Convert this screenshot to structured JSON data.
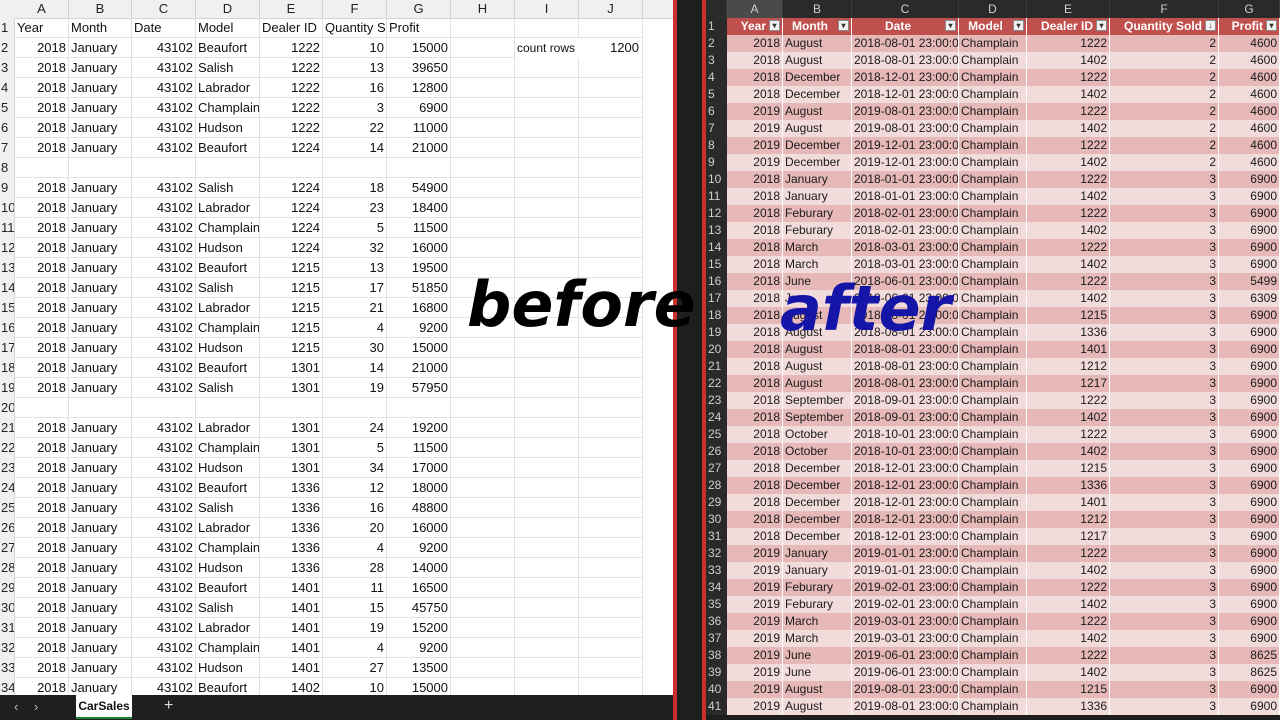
{
  "before": {
    "columns": [
      "A",
      "B",
      "C",
      "D",
      "E",
      "F",
      "G",
      "H",
      "I",
      "J"
    ],
    "headers": [
      "Year",
      "Month",
      "Date",
      "Model",
      "Dealer ID",
      "Quantity S",
      "Profit"
    ],
    "side_label": "count rows",
    "side_value": "1200",
    "rows": [
      [
        "1",
        "2018",
        "January",
        "43102",
        "Beaufort",
        "1222",
        "10",
        "15000"
      ],
      [
        "2",
        "2018",
        "January",
        "43102",
        "Salish",
        "1222",
        "13",
        "39650"
      ],
      [
        "3",
        "2018",
        "January",
        "43102",
        "Labrador",
        "1222",
        "16",
        "12800"
      ],
      [
        "4",
        "2018",
        "January",
        "43102",
        "Champlain",
        "1222",
        "3",
        "6900"
      ],
      [
        "5",
        "2018",
        "January",
        "43102",
        "Hudson",
        "1222",
        "22",
        "11000"
      ],
      [
        "6",
        "2018",
        "January",
        "43102",
        "Beaufort",
        "1224",
        "14",
        "21000"
      ],
      [
        "7",
        "",
        "",
        "",
        "",
        "",
        "",
        ""
      ],
      [
        "8",
        "2018",
        "January",
        "43102",
        "Salish",
        "1224",
        "18",
        "54900"
      ],
      [
        "9",
        "2018",
        "January",
        "43102",
        "Labrador",
        "1224",
        "23",
        "18400"
      ],
      [
        "10",
        "2018",
        "January",
        "43102",
        "Champlain",
        "1224",
        "5",
        "11500"
      ],
      [
        "11",
        "2018",
        "January",
        "43102",
        "Hudson",
        "1224",
        "32",
        "16000"
      ],
      [
        "12",
        "2018",
        "January",
        "43102",
        "Beaufort",
        "1215",
        "13",
        "19500"
      ],
      [
        "13",
        "2018",
        "January",
        "43102",
        "Salish",
        "1215",
        "17",
        "51850"
      ],
      [
        "14",
        "2018",
        "January",
        "43102",
        "Labrador",
        "1215",
        "21",
        "16800"
      ],
      [
        "15",
        "2018",
        "January",
        "43102",
        "Champlain",
        "1215",
        "4",
        "9200"
      ],
      [
        "16",
        "2018",
        "January",
        "43102",
        "Hudson",
        "1215",
        "30",
        "15000"
      ],
      [
        "17",
        "2018",
        "January",
        "43102",
        "Beaufort",
        "1301",
        "14",
        "21000"
      ],
      [
        "18",
        "2018",
        "January",
        "43102",
        "Salish",
        "1301",
        "19",
        "57950"
      ],
      [
        "19",
        "",
        "",
        "",
        "",
        "",
        "",
        ""
      ],
      [
        "20",
        "2018",
        "January",
        "43102",
        "Labrador",
        "1301",
        "24",
        "19200"
      ],
      [
        "21",
        "2018",
        "January",
        "43102",
        "Champlain",
        "1301",
        "5",
        "11500"
      ],
      [
        "22",
        "2018",
        "January",
        "43102",
        "Hudson",
        "1301",
        "34",
        "17000"
      ],
      [
        "23",
        "2018",
        "January",
        "43102",
        "Beaufort",
        "1336",
        "12",
        "18000"
      ],
      [
        "24",
        "2018",
        "January",
        "43102",
        "Salish",
        "1336",
        "16",
        "48800"
      ],
      [
        "25",
        "2018",
        "January",
        "43102",
        "Labrador",
        "1336",
        "20",
        "16000"
      ],
      [
        "26",
        "2018",
        "January",
        "43102",
        "Champlain",
        "1336",
        "4",
        "9200"
      ],
      [
        "27",
        "2018",
        "January",
        "43102",
        "Hudson",
        "1336",
        "28",
        "14000"
      ],
      [
        "28",
        "2018",
        "January",
        "43102",
        "Beaufort",
        "1401",
        "11",
        "16500"
      ],
      [
        "29",
        "2018",
        "January",
        "43102",
        "Salish",
        "1401",
        "15",
        "45750"
      ],
      [
        "30",
        "2018",
        "January",
        "43102",
        "Labrador",
        "1401",
        "19",
        "15200"
      ],
      [
        "31",
        "2018",
        "January",
        "43102",
        "Champlain",
        "1401",
        "4",
        "9200"
      ],
      [
        "32",
        "2018",
        "January",
        "43102",
        "Hudson",
        "1401",
        "27",
        "13500"
      ],
      [
        "33",
        "2018",
        "January",
        "43102",
        "Beaufort",
        "1402",
        "10",
        "15000"
      ]
    ],
    "row_labels": [
      "1",
      "2",
      "3",
      "4",
      "5",
      "6",
      "7",
      "8",
      "9",
      "10",
      "11",
      "12",
      "13",
      "14",
      "15",
      "16",
      "17",
      "18",
      "19",
      "20",
      "21",
      "22",
      "23",
      "24",
      "25",
      "26",
      "27",
      "28",
      "29",
      "30",
      "31",
      "32",
      "33",
      "34"
    ],
    "sheet_tab": "CarSales"
  },
  "after": {
    "columns": [
      "A",
      "B",
      "C",
      "D",
      "E",
      "F",
      "G"
    ],
    "headers": [
      "Year",
      "Month",
      "Date",
      "Model",
      "Dealer ID",
      "Quantity Sold",
      "Profit"
    ],
    "rows": [
      [
        "2018",
        "August",
        "2018-08-01 23:00:00",
        "Champlain",
        "1222",
        "2",
        "4600"
      ],
      [
        "2018",
        "August",
        "2018-08-01 23:00:00",
        "Champlain",
        "1402",
        "2",
        "4600"
      ],
      [
        "2018",
        "December",
        "2018-12-01 23:00:00",
        "Champlain",
        "1222",
        "2",
        "4600"
      ],
      [
        "2018",
        "December",
        "2018-12-01 23:00:00",
        "Champlain",
        "1402",
        "2",
        "4600"
      ],
      [
        "2019",
        "August",
        "2019-08-01 23:00:00",
        "Champlain",
        "1222",
        "2",
        "4600"
      ],
      [
        "2019",
        "August",
        "2019-08-01 23:00:00",
        "Champlain",
        "1402",
        "2",
        "4600"
      ],
      [
        "2019",
        "December",
        "2019-12-01 23:00:00",
        "Champlain",
        "1222",
        "2",
        "4600"
      ],
      [
        "2019",
        "December",
        "2019-12-01 23:00:00",
        "Champlain",
        "1402",
        "2",
        "4600"
      ],
      [
        "2018",
        "January",
        "2018-01-01 23:00:00",
        "Champlain",
        "1222",
        "3",
        "6900"
      ],
      [
        "2018",
        "January",
        "2018-01-01 23:00:00",
        "Champlain",
        "1402",
        "3",
        "6900"
      ],
      [
        "2018",
        "Feburary",
        "2018-02-01 23:00:00",
        "Champlain",
        "1222",
        "3",
        "6900"
      ],
      [
        "2018",
        "Feburary",
        "2018-02-01 23:00:00",
        "Champlain",
        "1402",
        "3",
        "6900"
      ],
      [
        "2018",
        "March",
        "2018-03-01 23:00:00",
        "Champlain",
        "1222",
        "3",
        "6900"
      ],
      [
        "2018",
        "March",
        "2018-03-01 23:00:00",
        "Champlain",
        "1402",
        "3",
        "6900"
      ],
      [
        "2018",
        "June",
        "2018-06-01 23:00:00",
        "Champlain",
        "1222",
        "3",
        "5499"
      ],
      [
        "2018",
        "June",
        "2018-06-01 23:00:00",
        "Champlain",
        "1402",
        "3",
        "6309"
      ],
      [
        "2018",
        "August",
        "2018-08-01 23:00:00",
        "Champlain",
        "1215",
        "3",
        "6900"
      ],
      [
        "2018",
        "August",
        "2018-08-01 23:00:00",
        "Champlain",
        "1336",
        "3",
        "6900"
      ],
      [
        "2018",
        "August",
        "2018-08-01 23:00:00",
        "Champlain",
        "1401",
        "3",
        "6900"
      ],
      [
        "2018",
        "August",
        "2018-08-01 23:00:00",
        "Champlain",
        "1212",
        "3",
        "6900"
      ],
      [
        "2018",
        "August",
        "2018-08-01 23:00:00",
        "Champlain",
        "1217",
        "3",
        "6900"
      ],
      [
        "2018",
        "September",
        "2018-09-01 23:00:00",
        "Champlain",
        "1222",
        "3",
        "6900"
      ],
      [
        "2018",
        "September",
        "2018-09-01 23:00:00",
        "Champlain",
        "1402",
        "3",
        "6900"
      ],
      [
        "2018",
        "October",
        "2018-10-01 23:00:00",
        "Champlain",
        "1222",
        "3",
        "6900"
      ],
      [
        "2018",
        "October",
        "2018-10-01 23:00:00",
        "Champlain",
        "1402",
        "3",
        "6900"
      ],
      [
        "2018",
        "December",
        "2018-12-01 23:00:00",
        "Champlain",
        "1215",
        "3",
        "6900"
      ],
      [
        "2018",
        "December",
        "2018-12-01 23:00:00",
        "Champlain",
        "1336",
        "3",
        "6900"
      ],
      [
        "2018",
        "December",
        "2018-12-01 23:00:00",
        "Champlain",
        "1401",
        "3",
        "6900"
      ],
      [
        "2018",
        "December",
        "2018-12-01 23:00:00",
        "Champlain",
        "1212",
        "3",
        "6900"
      ],
      [
        "2018",
        "December",
        "2018-12-01 23:00:00",
        "Champlain",
        "1217",
        "3",
        "6900"
      ],
      [
        "2019",
        "January",
        "2019-01-01 23:00:00",
        "Champlain",
        "1222",
        "3",
        "6900"
      ],
      [
        "2019",
        "January",
        "2019-01-01 23:00:00",
        "Champlain",
        "1402",
        "3",
        "6900"
      ],
      [
        "2019",
        "Feburary",
        "2019-02-01 23:00:00",
        "Champlain",
        "1222",
        "3",
        "6900"
      ],
      [
        "2019",
        "Feburary",
        "2019-02-01 23:00:00",
        "Champlain",
        "1402",
        "3",
        "6900"
      ],
      [
        "2019",
        "March",
        "2019-03-01 23:00:00",
        "Champlain",
        "1222",
        "3",
        "6900"
      ],
      [
        "2019",
        "March",
        "2019-03-01 23:00:00",
        "Champlain",
        "1402",
        "3",
        "6900"
      ],
      [
        "2019",
        "June",
        "2019-06-01 23:00:00",
        "Champlain",
        "1222",
        "3",
        "8625"
      ],
      [
        "2019",
        "June",
        "2019-06-01 23:00:00",
        "Champlain",
        "1402",
        "3",
        "8625"
      ],
      [
        "2019",
        "August",
        "2019-08-01 23:00:00",
        "Champlain",
        "1215",
        "3",
        "6900"
      ],
      [
        "2019",
        "August",
        "2019-08-01 23:00:00",
        "Champlain",
        "1336",
        "3",
        "6900"
      ]
    ]
  },
  "overlay": {
    "before_word": "before",
    "after_word": "after"
  },
  "colors": {
    "header_red": "#c0504d",
    "band_dark": "#e6b9b8",
    "band_light": "#f2dcdb",
    "after_word": "#1515a8",
    "divider_red": "#c9302c"
  }
}
